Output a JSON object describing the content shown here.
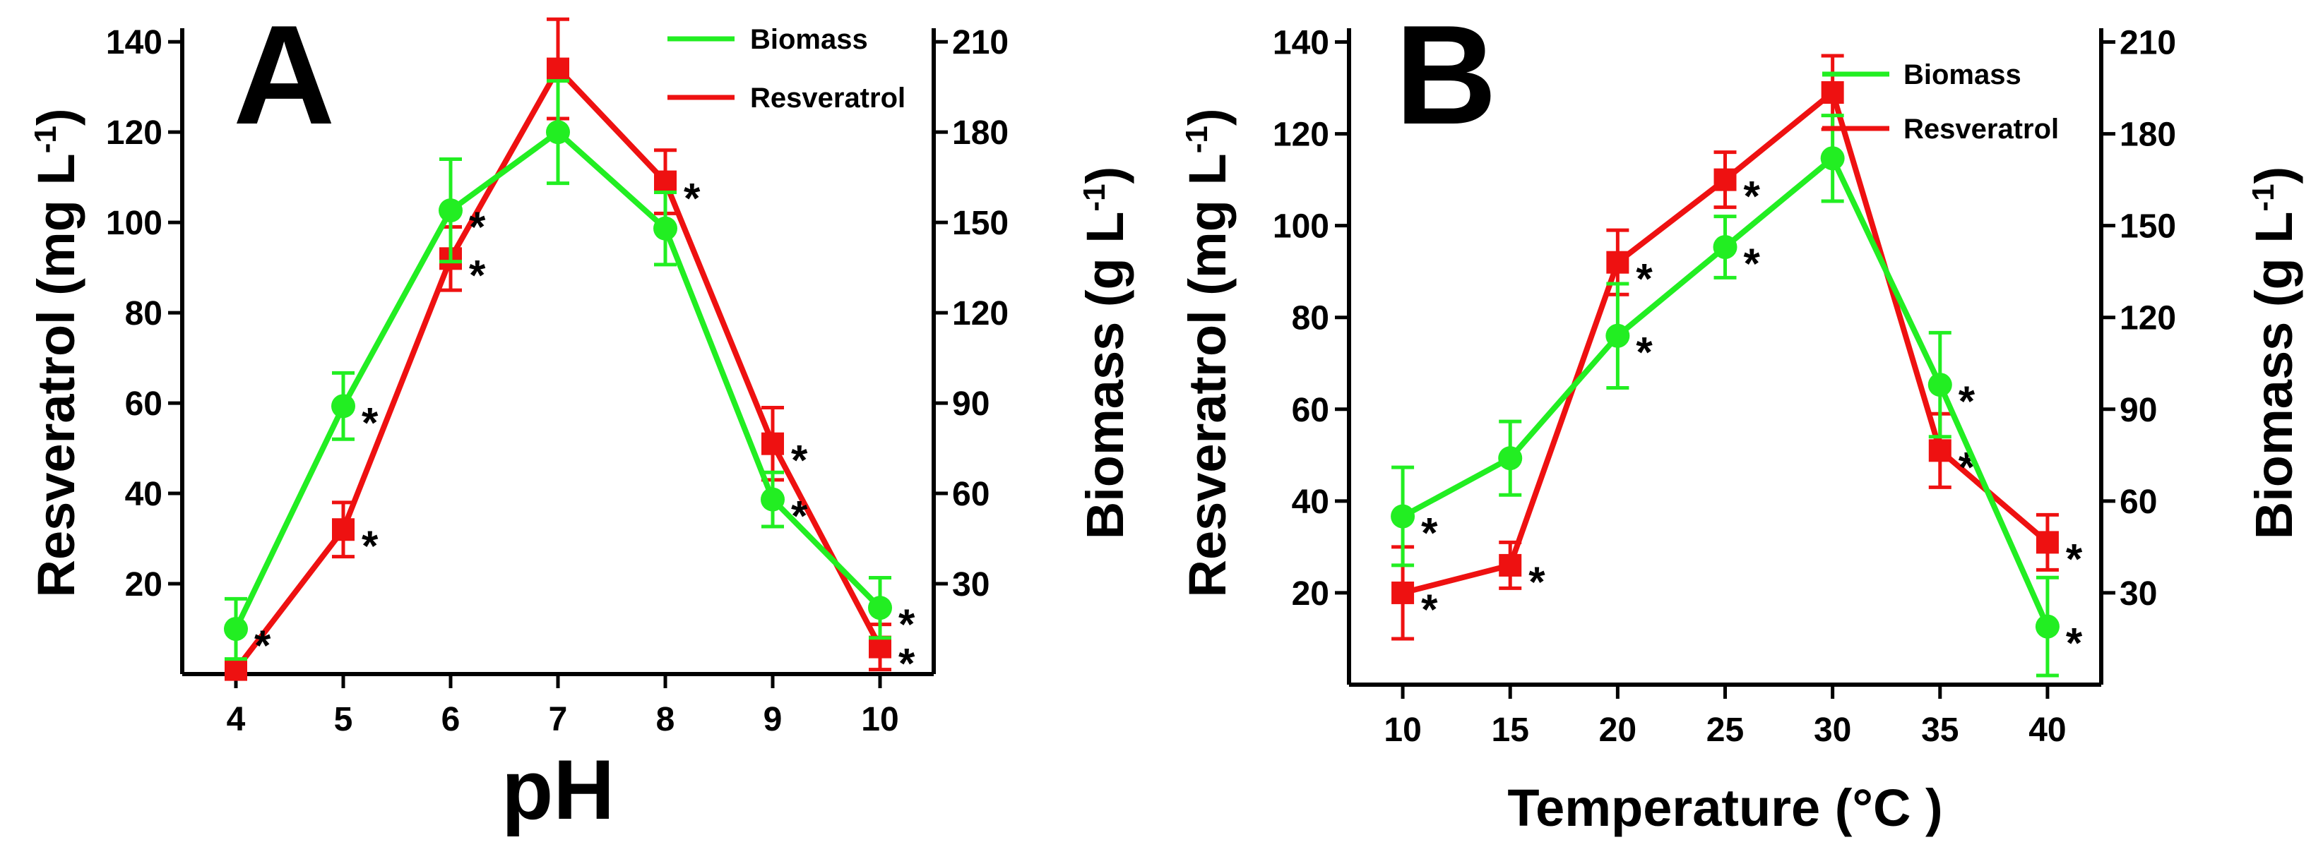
{
  "chart_data": [
    {
      "type": "line",
      "panel_label": "A",
      "xlabel": "pH",
      "ylabel_left": "Resveratrol (mg L",
      "ylabel_left_sup": "-1",
      "ylabel_left_close": ")",
      "ylabel_right": "Biomass",
      "ylabel_right_units": "(g L",
      "ylabel_right_sup": "-1",
      "ylabel_right_close": ")",
      "categories": [
        "4",
        "5",
        "6",
        "7",
        "8",
        "9",
        "10"
      ],
      "x": [
        4,
        5,
        6,
        7,
        8,
        9,
        10
      ],
      "xlim": [
        3.5,
        10.5
      ],
      "ylim_left": [
        0,
        143
      ],
      "yticks_left": [
        20,
        40,
        60,
        80,
        100,
        120,
        140
      ],
      "ylim_right": [
        0,
        214.5
      ],
      "yticks_right": [
        30,
        60,
        90,
        120,
        150,
        180,
        210
      ],
      "legend_position": "top-right",
      "series": [
        {
          "name": "Biomass",
          "axis": "right",
          "color": "#22ee22",
          "marker": "circle",
          "values": [
            15,
            89,
            154,
            180,
            148,
            58,
            22
          ],
          "errors": [
            10,
            11,
            17,
            17,
            12,
            9,
            10
          ],
          "significance": [
            true,
            true,
            true,
            false,
            false,
            true,
            true
          ]
        },
        {
          "name": "Resveratrol",
          "axis": "left",
          "color": "#ee1111",
          "marker": "square",
          "values": [
            1,
            32,
            92,
            134,
            109,
            51,
            6
          ],
          "errors": [
            0,
            6,
            7,
            11,
            7,
            8,
            5
          ],
          "significance": [
            false,
            true,
            true,
            false,
            true,
            true,
            true
          ]
        }
      ]
    },
    {
      "type": "line",
      "panel_label": "B",
      "xlabel": "Temperature (°C )",
      "ylabel_left": "Resveratrol (mg L",
      "ylabel_left_sup": "-1",
      "ylabel_left_close": ")",
      "ylabel_right": "Biomass",
      "ylabel_right_units": "(g L",
      "ylabel_right_sup": "-1",
      "ylabel_right_close": ")",
      "categories": [
        "10",
        "15",
        "20",
        "25",
        "30",
        "35",
        "40"
      ],
      "x": [
        10,
        15,
        20,
        25,
        30,
        35,
        40
      ],
      "xlim": [
        7.5,
        42.5
      ],
      "ylim_left": [
        0,
        143
      ],
      "yticks_left": [
        20,
        40,
        60,
        80,
        100,
        120,
        140
      ],
      "ylim_right": [
        0,
        214.5
      ],
      "yticks_right": [
        30,
        60,
        90,
        120,
        150,
        180,
        210
      ],
      "legend_position": "top-right",
      "series": [
        {
          "name": "Biomass",
          "axis": "right",
          "color": "#22ee22",
          "marker": "circle",
          "values": [
            55,
            74,
            114,
            143,
            172,
            98,
            19
          ],
          "errors": [
            16,
            12,
            17,
            10,
            14,
            17,
            16
          ],
          "significance": [
            true,
            false,
            true,
            true,
            false,
            true,
            true
          ]
        },
        {
          "name": "Resveratrol",
          "axis": "left",
          "color": "#ee1111",
          "marker": "square",
          "values": [
            20,
            26,
            92,
            110,
            129,
            51,
            31
          ],
          "errors": [
            10,
            5,
            7,
            6,
            8,
            8,
            6
          ],
          "significance": [
            true,
            true,
            true,
            true,
            false,
            true,
            true
          ]
        }
      ]
    }
  ]
}
